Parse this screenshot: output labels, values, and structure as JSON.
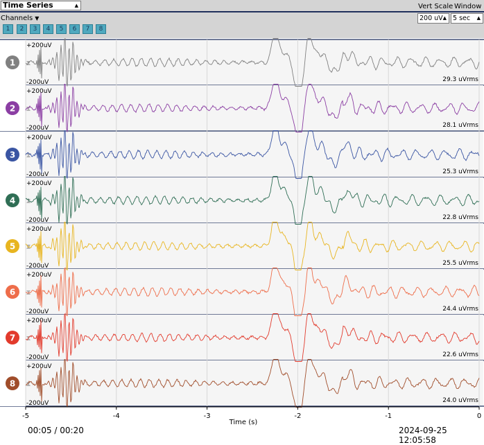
{
  "toolbar": {
    "widget_select": "Time Series",
    "channels_label": "Channels",
    "channel_buttons": [
      "1",
      "2",
      "3",
      "4",
      "5",
      "6",
      "7",
      "8"
    ],
    "vert_scale_label": "Vert Scale",
    "window_label": "Window",
    "vert_scale_value": "200 uV",
    "window_value": "5 sec"
  },
  "chart_data": {
    "type": "line",
    "title": "",
    "xlabel": "Time (s)",
    "ylabel": "",
    "xlim": [
      -5,
      0
    ],
    "ylim": [
      -200,
      200
    ],
    "x_ticks": [
      "-5",
      "-4",
      "-3",
      "-2",
      "-1",
      "0"
    ],
    "y_top_label": "+200uV",
    "y_bottom_label": "-200uV",
    "grid": true,
    "series": [
      {
        "name": "1",
        "color": "#808080",
        "rms": "29.3 uVrms"
      },
      {
        "name": "2",
        "color": "#8b3ea3",
        "rms": "28.1 uVrms"
      },
      {
        "name": "3",
        "color": "#3a55a3",
        "rms": "25.3 uVrms"
      },
      {
        "name": "4",
        "color": "#2f6e55",
        "rms": "22.8 uVrms"
      },
      {
        "name": "5",
        "color": "#e8b520",
        "rms": "25.5 uVrms"
      },
      {
        "name": "6",
        "color": "#ee6d4a",
        "rms": "24.4 uVrms"
      },
      {
        "name": "7",
        "color": "#e23a2c",
        "rms": "22.6 uVrms"
      },
      {
        "name": "8",
        "color": "#a04d2a",
        "rms": "24.0 uVrms"
      }
    ]
  },
  "footer": {
    "elapsed": "00:05 / 00:20",
    "timestamp": "2024-09-25 12:05:58"
  },
  "icons": [
    "hourglass-icon",
    "arrows-icon"
  ]
}
